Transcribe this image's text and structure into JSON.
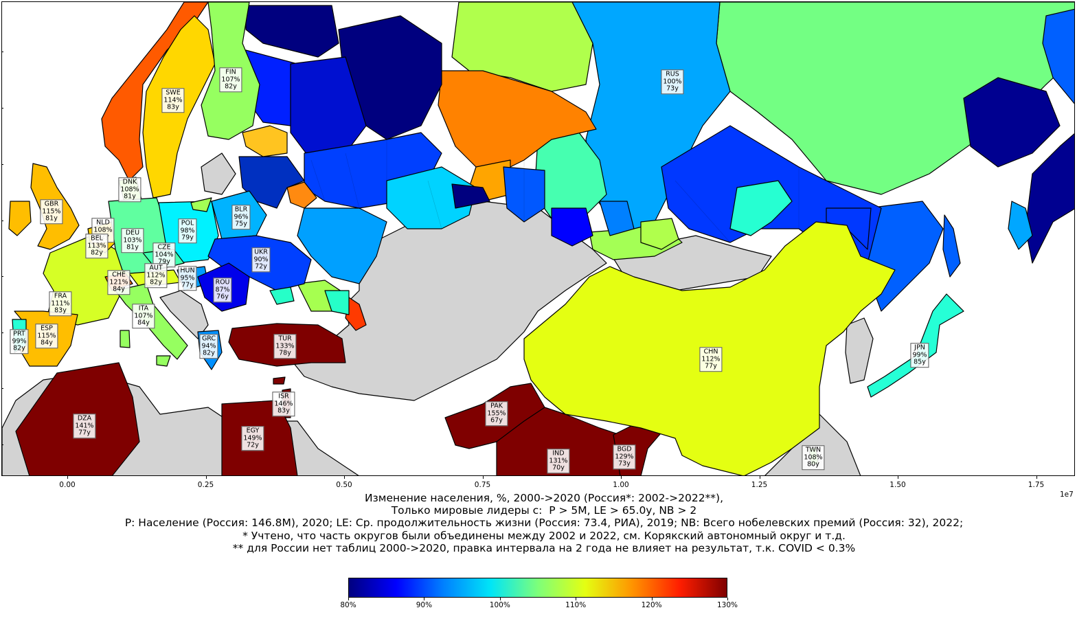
{
  "figure": {
    "x_ticks": [
      "0.00",
      "0.25",
      "0.50",
      "0.75",
      "1.00",
      "1.25",
      "1.50",
      "1.75"
    ],
    "x_offset_label": "1e7",
    "caption_lines": [
      "Изменение населения, %, 2000->2020 (Россия*: 2002->2022**),",
      "Только мировые лидеры с:  P > 5M, LE > 65.0y, NB > 2",
      "P: Население (Россия: 146.8M), 2020; LE: Ср. продолжительность жизни (Россия: 73.4, РИА), 2019; NB: Всего нобелевских премий (Россия: 32), 2022;",
      "* Учтено, что часть округов были объединены между 2002 и 2022, см. Корякский автономный округ и т.д.",
      "** для России нет таблиц 2000->2020, правка интервала на 2 года не влияет на результат, т.к. COVID < 0.3%"
    ],
    "colorbar_ticks": [
      "80%",
      "90%",
      "100%",
      "110%",
      "120%",
      "130%"
    ],
    "colorbar_range": [
      80,
      130
    ],
    "no_data_color": "#d3d3d3"
  },
  "countries": [
    {
      "code": "RUS",
      "change": "100%",
      "le": "73y",
      "value": 100
    },
    {
      "code": "FIN",
      "change": "107%",
      "le": "82y",
      "value": 107
    },
    {
      "code": "SWE",
      "change": "114%",
      "le": "83y",
      "value": 114
    },
    {
      "code": "DNK",
      "change": "108%",
      "le": "81y",
      "value": 108
    },
    {
      "code": "GBR",
      "change": "115%",
      "le": "81y",
      "value": 115
    },
    {
      "code": "NLD",
      "change": "108%",
      "le": "82y",
      "value": 108
    },
    {
      "code": "DEU",
      "change": "103%",
      "le": "81y",
      "value": 103
    },
    {
      "code": "POL",
      "change": "98%",
      "le": "79y",
      "value": 98
    },
    {
      "code": "BLR",
      "change": "96%",
      "le": "75y",
      "value": 96
    },
    {
      "code": "BEL",
      "change": "113%",
      "le": "82y",
      "value": 113
    },
    {
      "code": "CZE",
      "change": "104%",
      "le": "79y",
      "value": 104
    },
    {
      "code": "UKR",
      "change": "90%",
      "le": "72y",
      "value": 90
    },
    {
      "code": "AUT",
      "change": "112%",
      "le": "82y",
      "value": 112
    },
    {
      "code": "HUN",
      "change": "95%",
      "le": "77y",
      "value": 95
    },
    {
      "code": "CHE",
      "change": "121%",
      "le": "84y",
      "value": 121
    },
    {
      "code": "ROU",
      "change": "87%",
      "le": "76y",
      "value": 87
    },
    {
      "code": "FRA",
      "change": "111%",
      "le": "83y",
      "value": 111
    },
    {
      "code": "ITA",
      "change": "107%",
      "le": "84y",
      "value": 107
    },
    {
      "code": "ESP",
      "change": "115%",
      "le": "84y",
      "value": 115
    },
    {
      "code": "PRT",
      "change": "99%",
      "le": "82y",
      "value": 99
    },
    {
      "code": "GRC",
      "change": "94%",
      "le": "82y",
      "value": 94
    },
    {
      "code": "TUR",
      "change": "133%",
      "le": "78y",
      "value": 133
    },
    {
      "code": "ISR",
      "change": "146%",
      "le": "83y",
      "value": 146
    },
    {
      "code": "EGY",
      "change": "149%",
      "le": "72y",
      "value": 149
    },
    {
      "code": "DZA",
      "change": "141%",
      "le": "77y",
      "value": 141
    },
    {
      "code": "PAK",
      "change": "155%",
      "le": "67y",
      "value": 155
    },
    {
      "code": "IND",
      "change": "131%",
      "le": "70y",
      "value": 131
    },
    {
      "code": "BGD",
      "change": "129%",
      "le": "73y",
      "value": 129
    },
    {
      "code": "CHN",
      "change": "112%",
      "le": "77y",
      "value": 112
    },
    {
      "code": "JPN",
      "change": "99%",
      "le": "85y",
      "value": 99
    },
    {
      "code": "TWN",
      "change": "108%",
      "le": "80y",
      "value": 108
    }
  ]
}
